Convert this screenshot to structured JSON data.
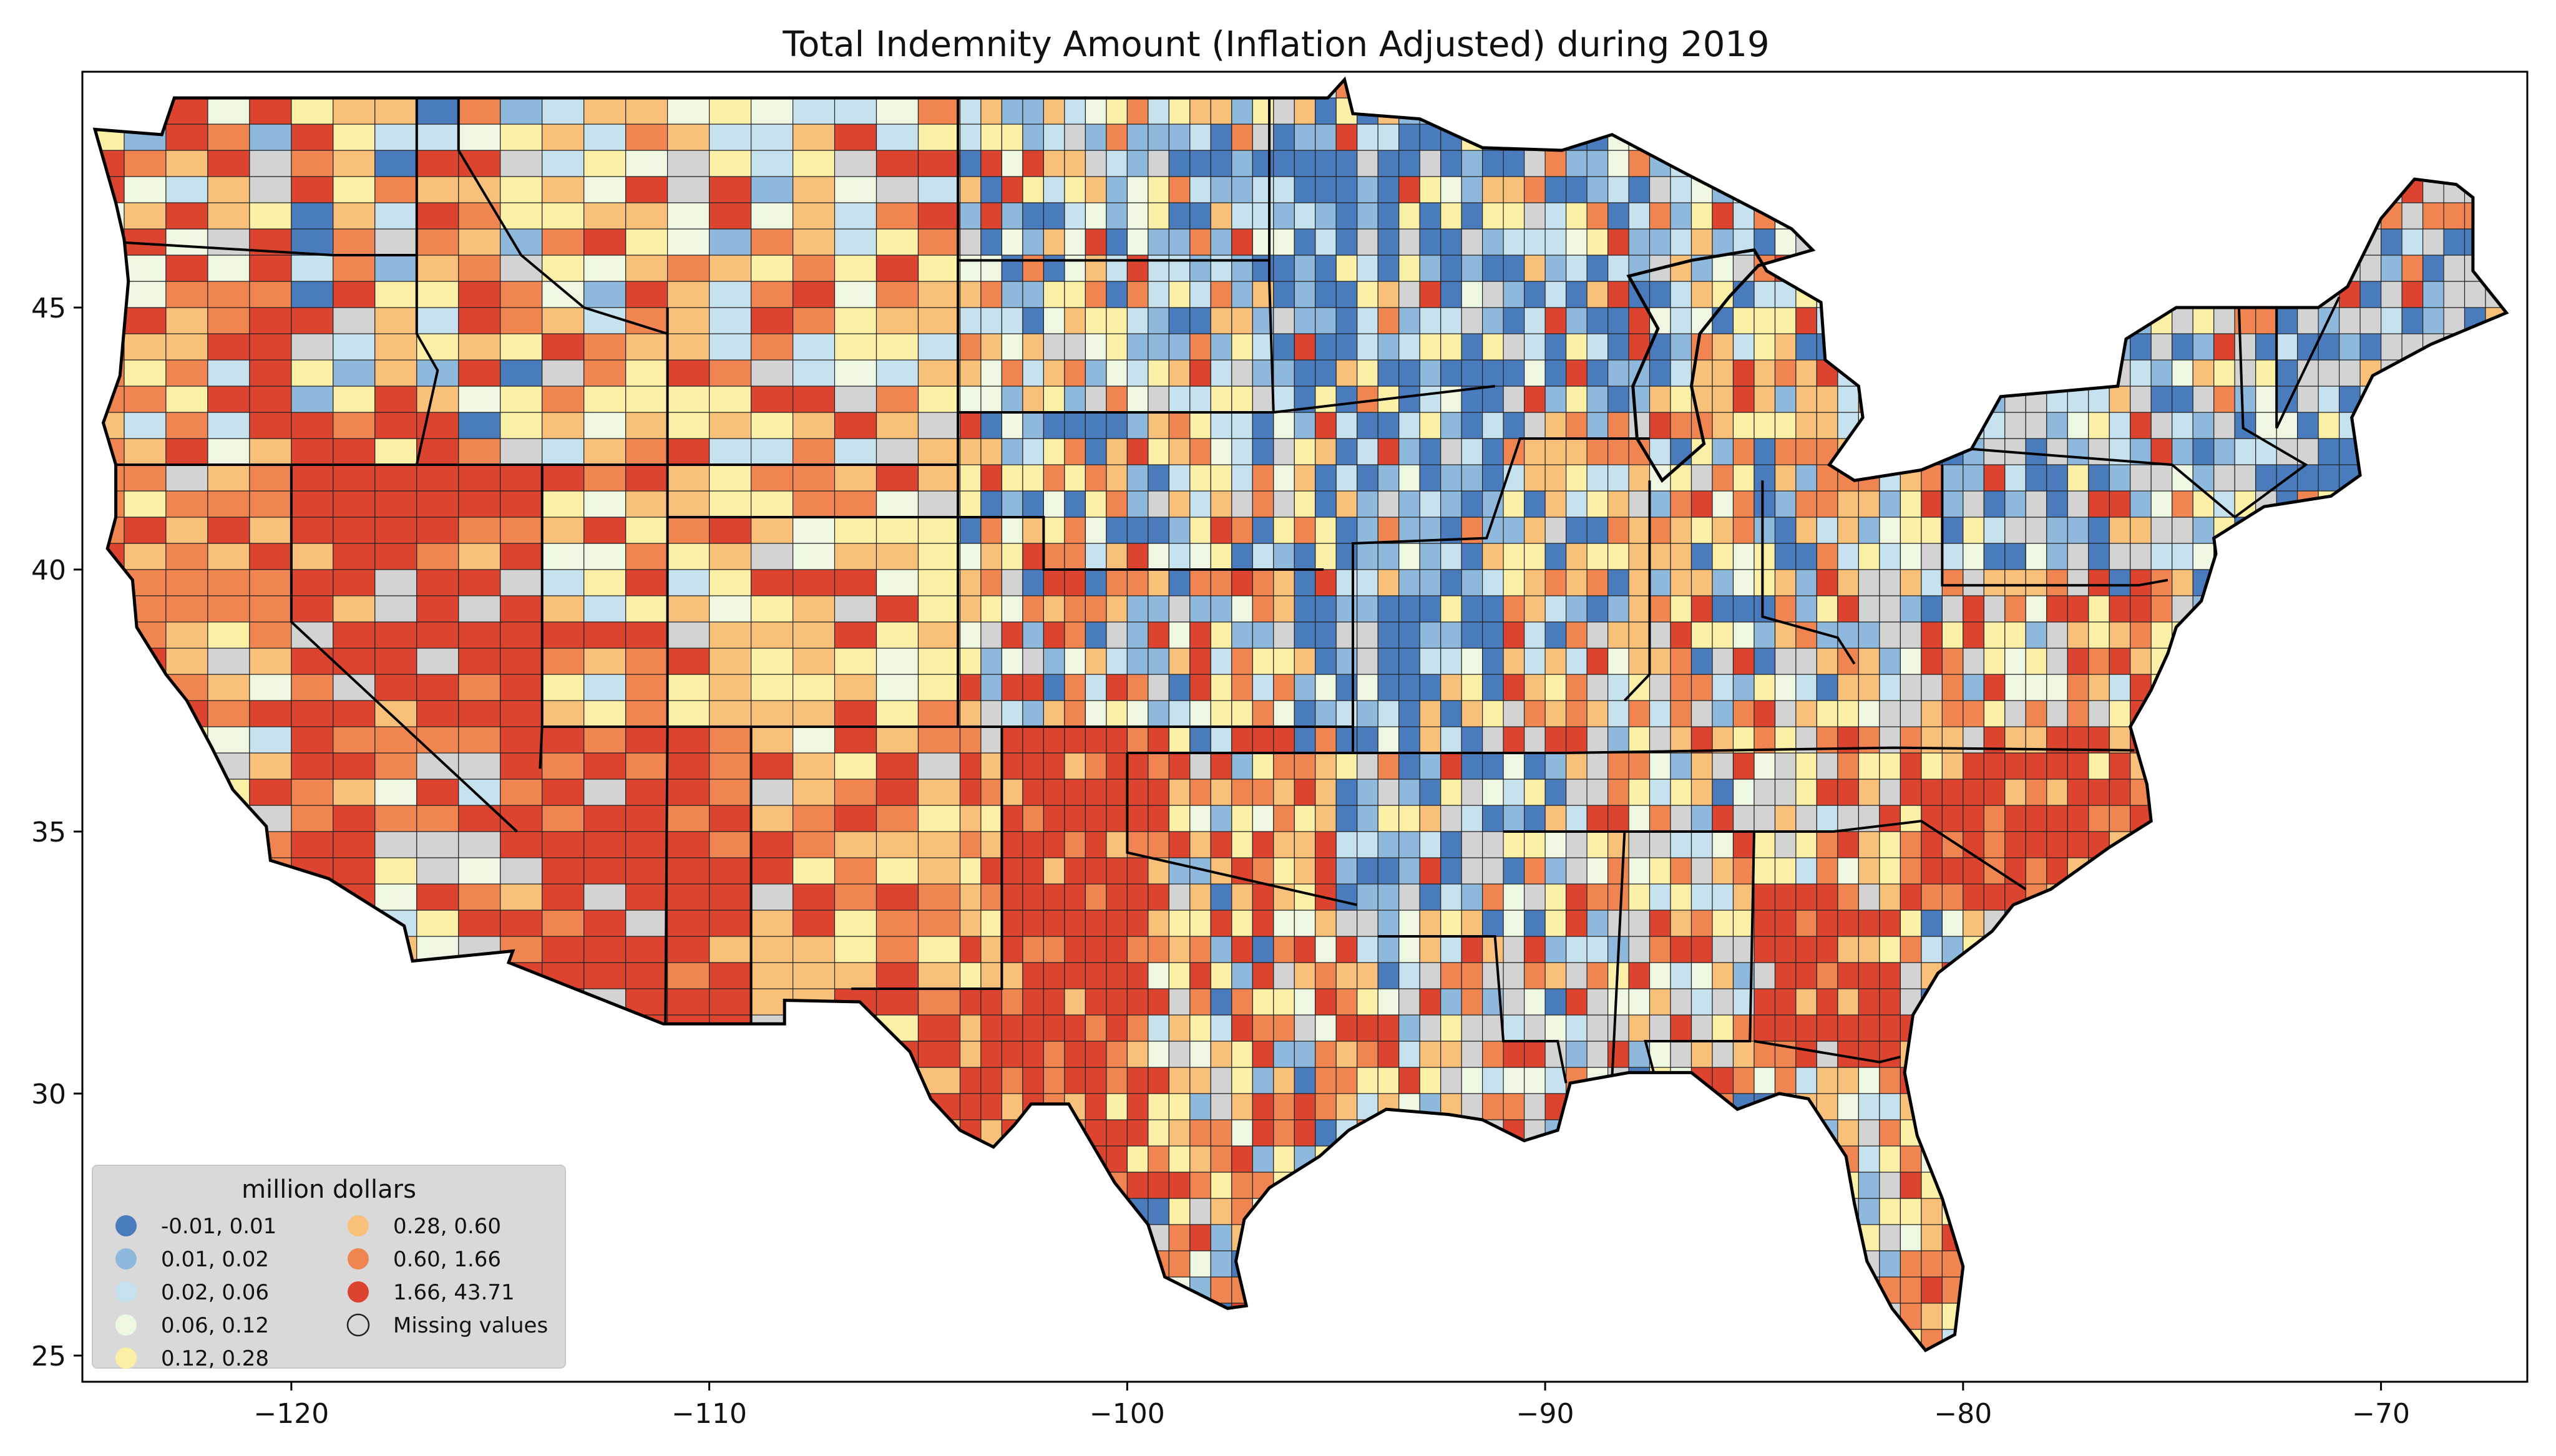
{
  "title": "Total Indemnity Amount  (Inflation Adjusted) during 2019",
  "x_axis": {
    "range": [
      -125,
      -66.5
    ],
    "ticks": [
      {
        "value": -120,
        "label": "−120"
      },
      {
        "value": -110,
        "label": "−110"
      },
      {
        "value": -100,
        "label": "−100"
      },
      {
        "value": -90,
        "label": "−90"
      },
      {
        "value": -80,
        "label": "−80"
      },
      {
        "value": -70,
        "label": "−70"
      }
    ]
  },
  "y_axis": {
    "range": [
      24.5,
      49.5
    ],
    "ticks": [
      {
        "value": 25,
        "label": "25"
      },
      {
        "value": 30,
        "label": "30"
      },
      {
        "value": 35,
        "label": "35"
      },
      {
        "value": 40,
        "label": "40"
      },
      {
        "value": 45,
        "label": "45"
      }
    ]
  },
  "legend": {
    "title": "million dollars",
    "placement": "bottom-left",
    "items": [
      {
        "label": "-0.01,  0.01",
        "color": "#4a7bbd"
      },
      {
        "label": "0.01,  0.02",
        "color": "#8fb9dc"
      },
      {
        "label": "0.02,  0.06",
        "color": "#c6e2ee"
      },
      {
        "label": "0.06,  0.12",
        "color": "#eef7e2"
      },
      {
        "label": "0.12,  0.28",
        "color": "#fcefa6"
      },
      {
        "label": "0.28,  0.60",
        "color": "#f9c07a"
      },
      {
        "label": "0.60,  1.66",
        "color": "#f08552"
      },
      {
        "label": "1.66, 43.71",
        "color": "#dd4430"
      },
      {
        "label": "Missing values",
        "color": "#d3d3d3"
      }
    ]
  },
  "colors": {
    "background": "#ffffff",
    "missing": "#d3d3d3",
    "legend_bg": "#d9d9d9",
    "border": "#000000"
  }
}
